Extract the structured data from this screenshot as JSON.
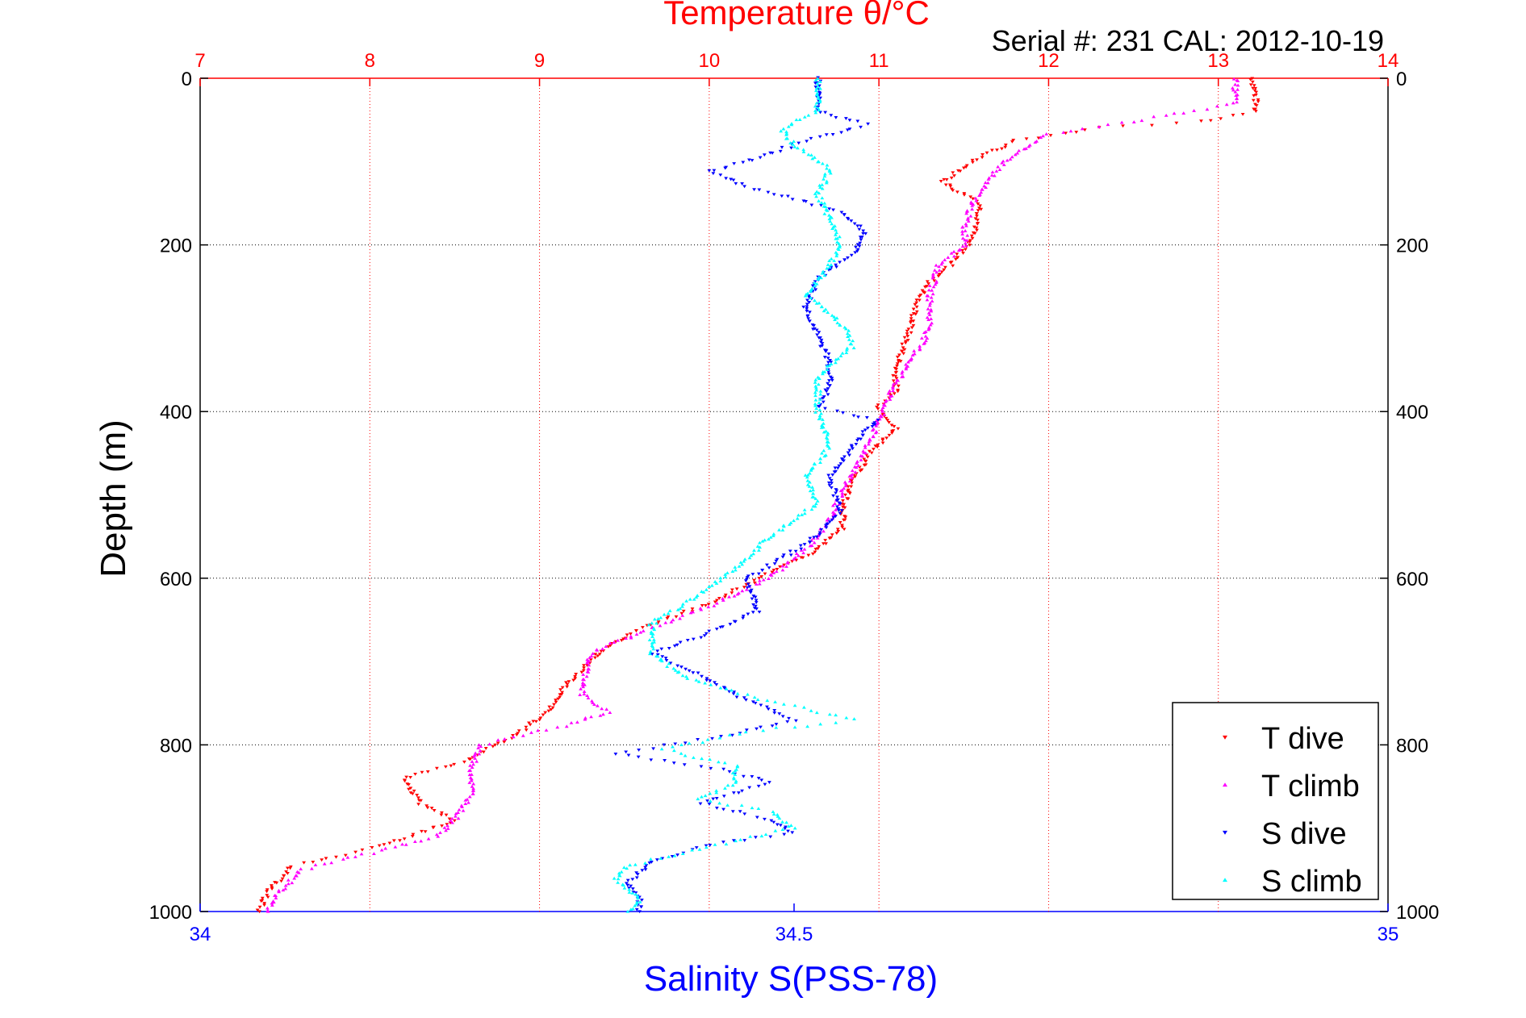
{
  "chart_data": {
    "type": "scatter",
    "title_top": "Temperature θ/°C",
    "subtitle": "Serial #: 231   CAL: 2012-10-19",
    "ylabel": "Depth (m)",
    "xlabel_bottom": "Salinity S(PSS-78)",
    "y_axis": {
      "range": [
        0,
        1000
      ],
      "reversed": true,
      "ticks": [
        0,
        200,
        400,
        600,
        800,
        1000
      ],
      "grid": true
    },
    "x_axis_top": {
      "range": [
        7,
        14
      ],
      "ticks": [
        7,
        8,
        9,
        10,
        11,
        12,
        13,
        14
      ],
      "color": "#ff0000",
      "grid": true
    },
    "x_axis_bottom": {
      "range": [
        34,
        35
      ],
      "ticks": [
        34,
        34.5,
        35
      ],
      "color": "#0000ff"
    },
    "legend": {
      "placement": "bottom-right"
    },
    "colors": {
      "t_dive": "#ff0000",
      "t_climb": "#ff00ff",
      "s_dive": "#0000ff",
      "s_climb": "#00ffff",
      "grid_black": "#000000",
      "grid_red": "#ff0000"
    },
    "series": [
      {
        "name": "T dive",
        "axis": "top",
        "marker": "down-triangle",
        "color": "#ff0000",
        "points": [
          [
            13.2,
            0
          ],
          [
            13.22,
            20
          ],
          [
            13.22,
            40
          ],
          [
            12.9,
            52
          ],
          [
            12.3,
            60
          ],
          [
            11.8,
            75
          ],
          [
            11.62,
            92
          ],
          [
            11.48,
            110
          ],
          [
            11.38,
            125
          ],
          [
            11.45,
            135
          ],
          [
            11.6,
            150
          ],
          [
            11.58,
            175
          ],
          [
            11.52,
            200
          ],
          [
            11.42,
            225
          ],
          [
            11.3,
            245
          ],
          [
            11.22,
            270
          ],
          [
            11.2,
            290
          ],
          [
            11.15,
            320
          ],
          [
            11.1,
            350
          ],
          [
            11.1,
            375
          ],
          [
            11.0,
            395
          ],
          [
            11.1,
            420
          ],
          [
            10.95,
            450
          ],
          [
            10.85,
            480
          ],
          [
            10.8,
            510
          ],
          [
            10.78,
            540
          ],
          [
            10.6,
            570
          ],
          [
            10.3,
            600
          ],
          [
            10.0,
            630
          ],
          [
            9.6,
            660
          ],
          [
            9.35,
            690
          ],
          [
            9.15,
            730
          ],
          [
            9.05,
            760
          ],
          [
            8.85,
            790
          ],
          [
            8.55,
            820
          ],
          [
            8.2,
            840
          ],
          [
            8.3,
            870
          ],
          [
            8.5,
            890
          ],
          [
            8.1,
            920
          ],
          [
            7.55,
            945
          ],
          [
            7.4,
            975
          ],
          [
            7.35,
            1000
          ]
        ]
      },
      {
        "name": "T climb",
        "axis": "top",
        "marker": "up-triangle",
        "color": "#ff00ff",
        "points": [
          [
            13.1,
            0
          ],
          [
            13.1,
            30
          ],
          [
            12.5,
            52
          ],
          [
            12.0,
            68
          ],
          [
            11.8,
            90
          ],
          [
            11.65,
            120
          ],
          [
            11.55,
            150
          ],
          [
            11.5,
            180
          ],
          [
            11.52,
            200
          ],
          [
            11.35,
            225
          ],
          [
            11.3,
            260
          ],
          [
            11.3,
            300
          ],
          [
            11.25,
            320
          ],
          [
            11.15,
            350
          ],
          [
            11.05,
            385
          ],
          [
            10.98,
            420
          ],
          [
            10.9,
            455
          ],
          [
            10.8,
            490
          ],
          [
            10.72,
            525
          ],
          [
            10.6,
            560
          ],
          [
            10.35,
            600
          ],
          [
            10.05,
            630
          ],
          [
            9.65,
            660
          ],
          [
            9.3,
            690
          ],
          [
            9.25,
            740
          ],
          [
            9.4,
            760
          ],
          [
            9.2,
            775
          ],
          [
            8.65,
            800
          ],
          [
            8.6,
            830
          ],
          [
            8.6,
            860
          ],
          [
            8.5,
            890
          ],
          [
            8.4,
            910
          ],
          [
            8.1,
            925
          ],
          [
            7.6,
            950
          ],
          [
            7.45,
            980
          ],
          [
            7.4,
            1000
          ]
        ]
      },
      {
        "name": "S dive",
        "axis": "bottom",
        "marker": "down-triangle",
        "color": "#0000ff",
        "points": [
          [
            34.52,
            0
          ],
          [
            34.52,
            40
          ],
          [
            34.56,
            55
          ],
          [
            34.5,
            80
          ],
          [
            34.47,
            95
          ],
          [
            34.43,
            112
          ],
          [
            34.46,
            130
          ],
          [
            34.5,
            145
          ],
          [
            34.54,
            160
          ],
          [
            34.56,
            185
          ],
          [
            34.55,
            210
          ],
          [
            34.52,
            240
          ],
          [
            34.51,
            275
          ],
          [
            34.52,
            310
          ],
          [
            34.53,
            340
          ],
          [
            34.53,
            370
          ],
          [
            34.52,
            395
          ],
          [
            34.57,
            410
          ],
          [
            34.55,
            440
          ],
          [
            34.53,
            480
          ],
          [
            34.54,
            520
          ],
          [
            34.51,
            560
          ],
          [
            34.46,
            600
          ],
          [
            34.47,
            640
          ],
          [
            34.42,
            670
          ],
          [
            34.38,
            690
          ],
          [
            34.42,
            715
          ],
          [
            34.45,
            740
          ],
          [
            34.5,
            770
          ],
          [
            34.44,
            790
          ],
          [
            34.35,
            810
          ],
          [
            34.44,
            830
          ],
          [
            34.48,
            845
          ],
          [
            34.42,
            870
          ],
          [
            34.48,
            890
          ],
          [
            34.5,
            905
          ],
          [
            34.43,
            920
          ],
          [
            34.38,
            940
          ],
          [
            34.36,
            965
          ],
          [
            34.37,
            985
          ],
          [
            34.37,
            1000
          ]
        ]
      },
      {
        "name": "S climb",
        "axis": "bottom",
        "marker": "up-triangle",
        "color": "#00ffff",
        "points": [
          [
            34.52,
            0
          ],
          [
            34.52,
            40
          ],
          [
            34.49,
            60
          ],
          [
            34.5,
            80
          ],
          [
            34.53,
            110
          ],
          [
            34.52,
            140
          ],
          [
            34.53,
            170
          ],
          [
            34.54,
            200
          ],
          [
            34.53,
            225
          ],
          [
            34.51,
            260
          ],
          [
            34.54,
            295
          ],
          [
            34.55,
            320
          ],
          [
            34.52,
            360
          ],
          [
            34.52,
            400
          ],
          [
            34.53,
            440
          ],
          [
            34.51,
            480
          ],
          [
            34.52,
            510
          ],
          [
            34.48,
            550
          ],
          [
            34.45,
            590
          ],
          [
            34.42,
            620
          ],
          [
            34.38,
            655
          ],
          [
            34.38,
            690
          ],
          [
            34.41,
            720
          ],
          [
            34.47,
            745
          ],
          [
            34.55,
            770
          ],
          [
            34.46,
            785
          ],
          [
            34.39,
            805
          ],
          [
            34.45,
            825
          ],
          [
            34.45,
            845
          ],
          [
            34.42,
            865
          ],
          [
            34.48,
            880
          ],
          [
            34.5,
            900
          ],
          [
            34.42,
            925
          ],
          [
            34.36,
            945
          ],
          [
            34.35,
            960
          ],
          [
            34.37,
            985
          ],
          [
            34.36,
            1000
          ]
        ]
      }
    ]
  }
}
